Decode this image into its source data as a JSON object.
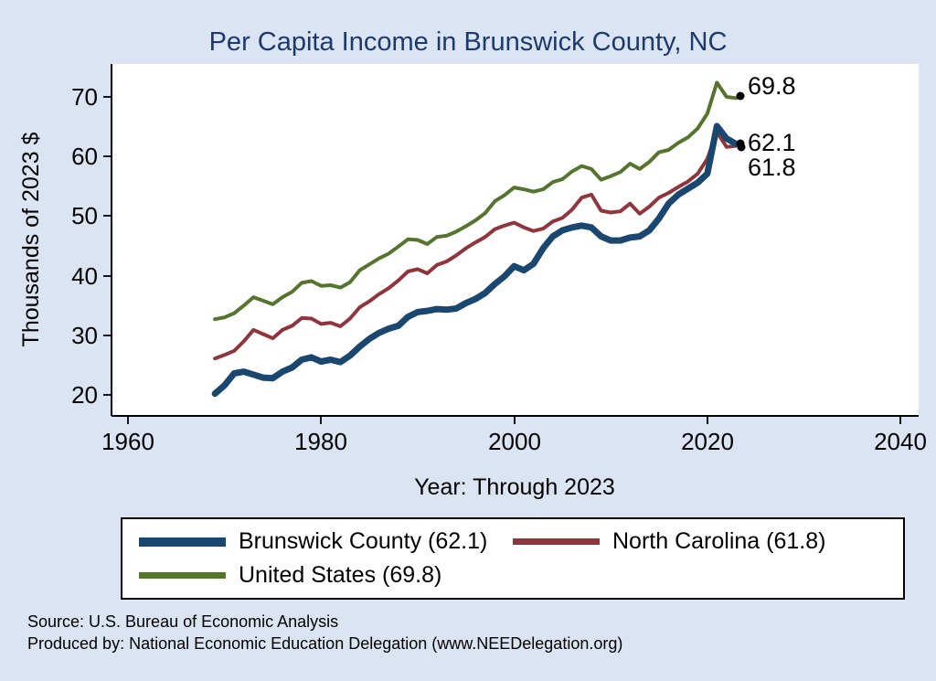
{
  "chart_data": {
    "type": "line",
    "title": "Per Capita Income in Brunswick County, NC",
    "xlabel": "Year: Through 2023",
    "ylabel": "Thousands of 2023 $",
    "xlim": [
      1960,
      2040
    ],
    "ylim": [
      20,
      70
    ],
    "xticks": [
      1960,
      1980,
      2000,
      2020,
      2040
    ],
    "yticks": [
      20,
      30,
      40,
      50,
      60,
      70
    ],
    "grid": false,
    "legend_position": "bottom",
    "x": [
      1969,
      1970,
      1971,
      1972,
      1973,
      1974,
      1975,
      1976,
      1977,
      1978,
      1979,
      1980,
      1981,
      1982,
      1983,
      1984,
      1985,
      1986,
      1987,
      1988,
      1989,
      1990,
      1991,
      1992,
      1993,
      1994,
      1995,
      1996,
      1997,
      1998,
      1999,
      2000,
      2001,
      2002,
      2003,
      2004,
      2005,
      2006,
      2007,
      2008,
      2009,
      2010,
      2011,
      2012,
      2013,
      2014,
      2015,
      2016,
      2017,
      2018,
      2019,
      2020,
      2021,
      2022,
      2023
    ],
    "series": [
      {
        "id": "brunswick-county",
        "name": "Brunswick County (62.1)",
        "color": "#1a476f",
        "width": 7,
        "values": [
          20.2,
          21.6,
          23.6,
          23.9,
          23.4,
          22.9,
          22.8,
          23.9,
          24.6,
          25.9,
          26.3,
          25.6,
          25.9,
          25.5,
          26.6,
          28.1,
          29.4,
          30.4,
          31.1,
          31.6,
          33.1,
          33.9,
          34.1,
          34.4,
          34.3,
          34.5,
          35.4,
          36.1,
          37.1,
          38.6,
          39.9,
          41.6,
          40.9,
          42.0,
          44.6,
          46.6,
          47.6,
          48.1,
          48.4,
          48.1,
          46.6,
          45.9,
          45.9,
          46.4,
          46.6,
          47.6,
          49.6,
          52.1,
          53.6,
          54.6,
          55.6,
          57.1,
          65.1,
          63.0,
          62.1
        ]
      },
      {
        "id": "north-carolina",
        "name": "North Carolina (61.8)",
        "color": "#90353b",
        "width": 4,
        "values": [
          26.1,
          26.7,
          27.4,
          29.0,
          30.9,
          30.2,
          29.5,
          30.9,
          31.6,
          32.9,
          32.8,
          31.9,
          32.1,
          31.5,
          32.8,
          34.7,
          35.7,
          36.9,
          37.9,
          39.2,
          40.7,
          41.1,
          40.4,
          41.8,
          42.4,
          43.4,
          44.6,
          45.6,
          46.5,
          47.8,
          48.4,
          48.9,
          48.1,
          47.5,
          47.9,
          49.1,
          49.7,
          51.1,
          53.1,
          53.6,
          50.9,
          50.6,
          50.8,
          52.1,
          50.4,
          51.6,
          53.1,
          53.9,
          54.9,
          55.8,
          57.1,
          59.6,
          64.1,
          61.6,
          61.8
        ]
      },
      {
        "id": "united-states",
        "name": "United States (69.8)",
        "color": "#55752f",
        "width": 4,
        "values": [
          32.7,
          33.0,
          33.7,
          35.0,
          36.4,
          35.8,
          35.2,
          36.4,
          37.3,
          38.8,
          39.1,
          38.3,
          38.4,
          38.0,
          38.9,
          40.9,
          41.9,
          42.9,
          43.7,
          44.9,
          46.1,
          46.0,
          45.3,
          46.5,
          46.7,
          47.4,
          48.3,
          49.3,
          50.5,
          52.5,
          53.5,
          54.8,
          54.5,
          54.1,
          54.5,
          55.7,
          56.2,
          57.5,
          58.4,
          57.9,
          56.1,
          56.7,
          57.4,
          58.8,
          57.9,
          59.1,
          60.7,
          61.1,
          62.3,
          63.2,
          64.7,
          67.2,
          72.4,
          70.0,
          69.8
        ]
      }
    ],
    "end_labels": [
      "69.8",
      "62.1",
      "61.8"
    ]
  },
  "footer": {
    "source": "Source: U.S. Bureau of Economic Analysis",
    "produced": "Produced by: National Economic Education Delegation (www.NEEDelegation.org)"
  }
}
